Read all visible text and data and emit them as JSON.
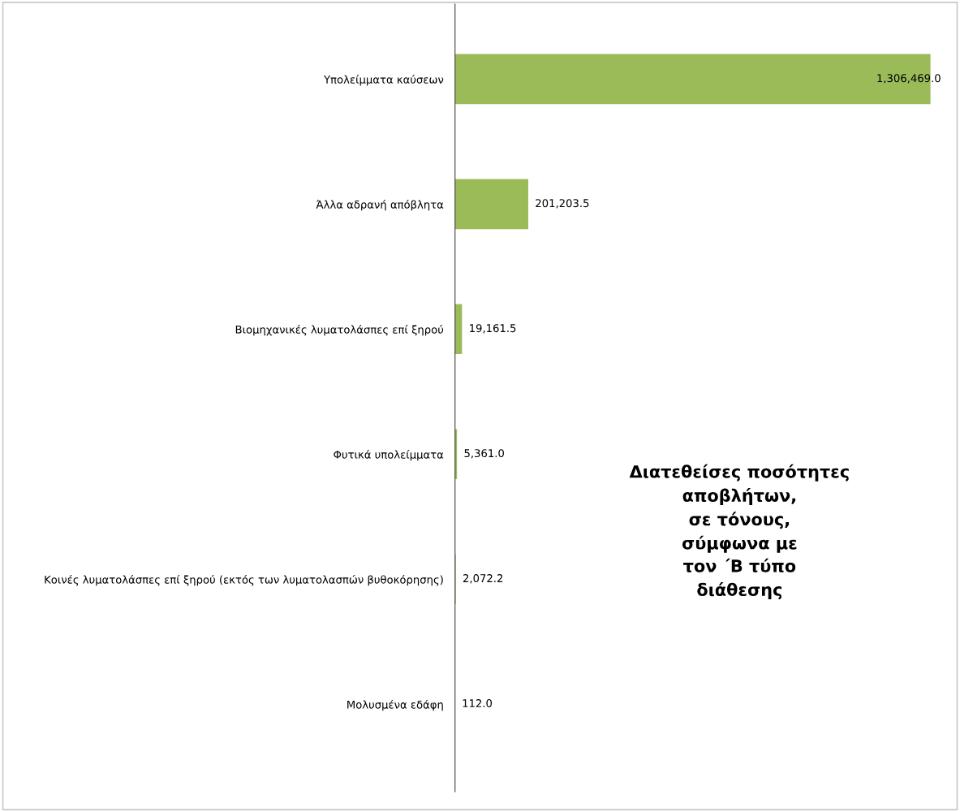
{
  "chart_data": {
    "type": "bar",
    "orientation": "horizontal",
    "title": "Διατεθείσες ποσότητες\nαποβλήτων,\nσε τόνους,\nσύμφωνα με\nτον ΄Β τύπο\nδιάθεσης",
    "categories": [
      "Υπολείμματα καύσεων",
      "Άλλα αδρανή απόβλητα",
      "Βιομηχανικές λυματολάσπες επί ξηρού",
      "Φυτικά υπολείμματα",
      "Κοινές λυματολάσπες επί ξηρού (εκτός των λυματολασπών βυθοκόρησης)",
      "Μολυσμένα εδάφη"
    ],
    "values": [
      1306469.0,
      201203.5,
      19161.5,
      5361.0,
      2072.2,
      112.0
    ],
    "value_labels": [
      "1,306,469.0",
      "201,203.5",
      "19,161.5",
      "5,361.0",
      "2,072.2",
      "112.0"
    ],
    "color": "#9bbb59",
    "grid": false,
    "legend": false
  }
}
